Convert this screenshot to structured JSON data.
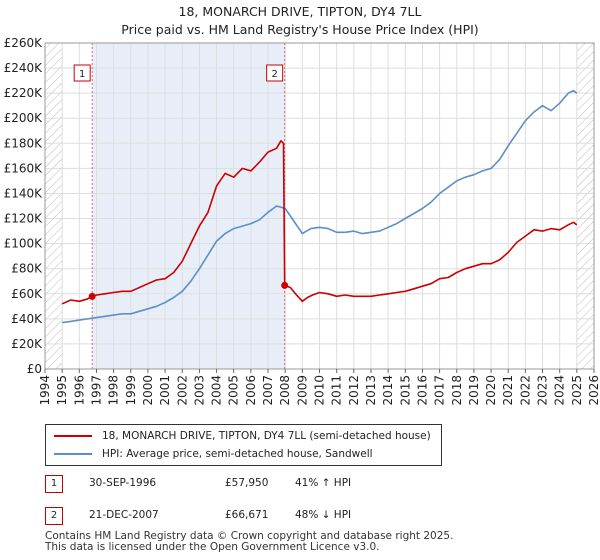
{
  "chart_data": {
    "type": "line",
    "title": "18, MONARCH DRIVE, TIPTON, DY4 7LL",
    "subtitle": "Price paid vs. HM Land Registry's House Price Index (HPI)",
    "xlim": [
      1994,
      2026
    ],
    "ylim": [
      0,
      260000
    ],
    "x_ticks": [
      "1994",
      "1995",
      "1996",
      "1997",
      "1998",
      "1999",
      "2000",
      "2001",
      "2002",
      "2003",
      "2004",
      "2005",
      "2006",
      "2007",
      "2008",
      "2009",
      "2010",
      "2011",
      "2012",
      "2013",
      "2014",
      "2015",
      "2016",
      "2017",
      "2018",
      "2019",
      "2020",
      "2021",
      "2022",
      "2023",
      "2024",
      "2025",
      "2026"
    ],
    "y_ticks": [
      {
        "value": 0,
        "label": "£0"
      },
      {
        "value": 20000,
        "label": "£20K"
      },
      {
        "value": 40000,
        "label": "£40K"
      },
      {
        "value": 60000,
        "label": "£60K"
      },
      {
        "value": 80000,
        "label": "£80K"
      },
      {
        "value": 100000,
        "label": "£100K"
      },
      {
        "value": 120000,
        "label": "£120K"
      },
      {
        "value": 140000,
        "label": "£140K"
      },
      {
        "value": 160000,
        "label": "£160K"
      },
      {
        "value": 180000,
        "label": "£180K"
      },
      {
        "value": 200000,
        "label": "£200K"
      },
      {
        "value": 220000,
        "label": "£220K"
      },
      {
        "value": 240000,
        "label": "£240K"
      },
      {
        "value": 260000,
        "label": "£260K"
      }
    ],
    "shaded_range": [
      1996.75,
      2007.97
    ],
    "hatch_before": 1995.0,
    "hatch_after": 2025.0,
    "series": [
      {
        "name": "18, MONARCH DRIVE, TIPTON, DY4 7LL (semi-detached house)",
        "color": "#cc0000",
        "x": [
          1995.0,
          1995.5,
          1996.0,
          1996.5,
          1996.75,
          1997.0,
          1997.5,
          1998.0,
          1998.5,
          1999.0,
          1999.5,
          2000.0,
          2000.5,
          2001.0,
          2001.5,
          2002.0,
          2002.5,
          2003.0,
          2003.5,
          2004.0,
          2004.5,
          2005.0,
          2005.5,
          2006.0,
          2006.5,
          2007.0,
          2007.5,
          2007.75,
          2007.9,
          2007.97,
          2008.3,
          2008.6,
          2009.0,
          2009.3,
          2009.6,
          2010.0,
          2010.5,
          2011.0,
          2011.5,
          2012.0,
          2012.5,
          2013.0,
          2013.5,
          2014.0,
          2014.5,
          2015.0,
          2015.5,
          2016.0,
          2016.5,
          2017.0,
          2017.5,
          2018.0,
          2018.5,
          2019.0,
          2019.5,
          2020.0,
          2020.5,
          2021.0,
          2021.5,
          2022.0,
          2022.5,
          2023.0,
          2023.5,
          2024.0,
          2024.5,
          2024.8,
          2025.0
        ],
        "values": [
          52000,
          55000,
          54000,
          56000,
          57950,
          59000,
          60000,
          61000,
          62000,
          62000,
          65000,
          68000,
          71000,
          72000,
          77000,
          86000,
          100000,
          114000,
          125000,
          146000,
          156000,
          153000,
          160000,
          158000,
          165000,
          173000,
          176000,
          182000,
          180000,
          66671,
          65000,
          60000,
          54000,
          57000,
          59000,
          61000,
          60000,
          58000,
          59000,
          58000,
          58000,
          58000,
          59000,
          60000,
          61000,
          62000,
          64000,
          66000,
          68000,
          72000,
          73000,
          77000,
          80000,
          82000,
          84000,
          84000,
          87000,
          93000,
          101000,
          106000,
          111000,
          110000,
          112000,
          111000,
          115000,
          117000,
          115000
        ]
      },
      {
        "name": "HPI: Average price, semi-detached house, Sandwell",
        "color": "#5b8fc9",
        "x": [
          1995.0,
          1995.5,
          1996.0,
          1996.5,
          1997.0,
          1997.5,
          1998.0,
          1998.5,
          1999.0,
          1999.5,
          2000.0,
          2000.5,
          2001.0,
          2001.5,
          2002.0,
          2002.5,
          2003.0,
          2003.5,
          2004.0,
          2004.5,
          2005.0,
          2005.5,
          2006.0,
          2006.5,
          2007.0,
          2007.5,
          2008.0,
          2008.5,
          2009.0,
          2009.5,
          2010.0,
          2010.5,
          2011.0,
          2011.5,
          2012.0,
          2012.5,
          2013.0,
          2013.5,
          2014.0,
          2014.5,
          2015.0,
          2015.5,
          2016.0,
          2016.5,
          2017.0,
          2017.5,
          2018.0,
          2018.5,
          2019.0,
          2019.5,
          2020.0,
          2020.5,
          2021.0,
          2021.5,
          2022.0,
          2022.5,
          2023.0,
          2023.5,
          2024.0,
          2024.5,
          2024.8,
          2025.0
        ],
        "values": [
          37000,
          38000,
          39000,
          40000,
          41000,
          42000,
          43000,
          44000,
          44000,
          46000,
          48000,
          50000,
          53000,
          57000,
          62000,
          70000,
          80000,
          91000,
          102000,
          108000,
          112000,
          114000,
          116000,
          119000,
          125000,
          130000,
          128000,
          118000,
          108000,
          112000,
          113000,
          112000,
          109000,
          109000,
          110000,
          108000,
          109000,
          110000,
          113000,
          116000,
          120000,
          124000,
          128000,
          133000,
          140000,
          145000,
          150000,
          153000,
          155000,
          158000,
          160000,
          167000,
          178000,
          188000,
          198000,
          205000,
          210000,
          206000,
          212000,
          220000,
          222000,
          220000
        ]
      }
    ],
    "sales": [
      {
        "id": "1",
        "x": 1996.75,
        "value": 57950
      },
      {
        "id": "2",
        "x": 2007.97,
        "value": 66671
      }
    ]
  },
  "legend": {
    "property": "18, MONARCH DRIVE, TIPTON, DY4 7LL (semi-detached house)",
    "hpi": "HPI: Average price, semi-detached house, Sandwell"
  },
  "sales_table": [
    {
      "id": "1",
      "date": "30-SEP-1996",
      "price": "£57,950",
      "hpi": "41% ↑ HPI"
    },
    {
      "id": "2",
      "date": "21-DEC-2007",
      "price": "£66,671",
      "hpi": "48% ↓ HPI"
    }
  ],
  "footer": {
    "line1": "Contains HM Land Registry data © Crown copyright and database right 2025.",
    "line2": "This data is licensed under the Open Government Licence v3.0."
  }
}
